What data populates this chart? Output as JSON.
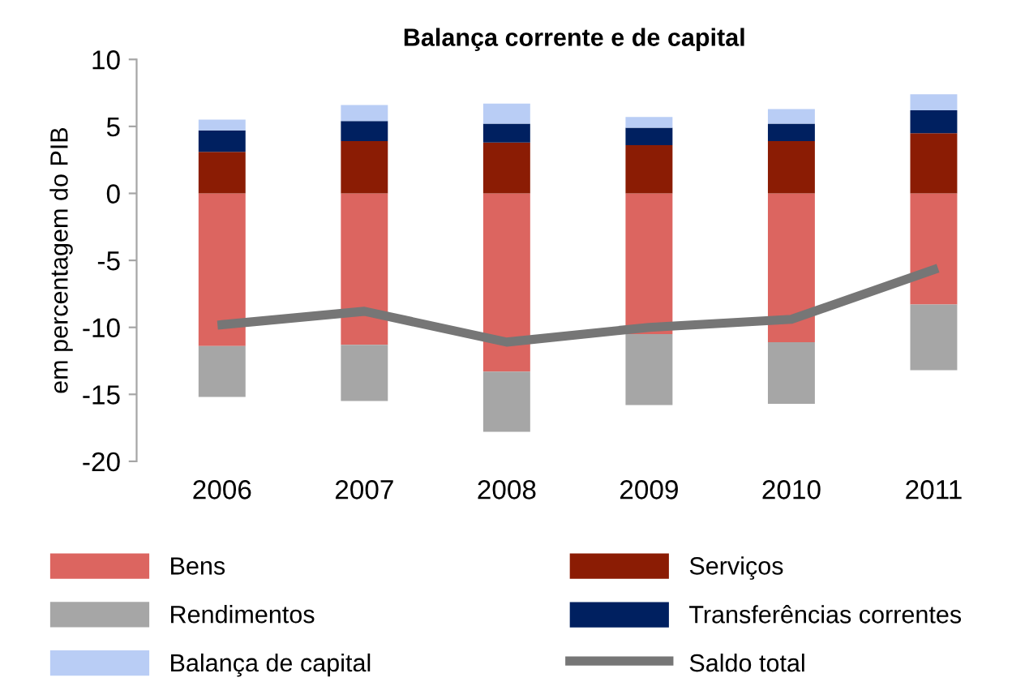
{
  "chart_data": {
    "type": "bar",
    "stacked": true,
    "title": "Balança corrente e de capital",
    "ylabel": "em percentagem do PIB",
    "categories": [
      "2006",
      "2007",
      "2008",
      "2009",
      "2010",
      "2011"
    ],
    "series": [
      {
        "name": "Bens",
        "color": "#dc6560",
        "values": [
          -11.4,
          -11.3,
          -13.3,
          -10.5,
          -11.1,
          -8.3
        ]
      },
      {
        "name": "Serviços",
        "color": "#8b1c04",
        "values": [
          3.1,
          3.9,
          3.8,
          3.6,
          3.9,
          4.5
        ]
      },
      {
        "name": "Rendimentos",
        "color": "#a6a6a6",
        "values": [
          -3.8,
          -4.2,
          -4.5,
          -5.3,
          -4.6,
          -4.9
        ]
      },
      {
        "name": "Transferências correntes",
        "color": "#002060",
        "values": [
          1.6,
          1.5,
          1.4,
          1.3,
          1.3,
          1.7
        ]
      },
      {
        "name": "Balança de capital",
        "color": "#b9cdf5",
        "values": [
          0.8,
          1.2,
          1.5,
          0.8,
          1.1,
          1.2
        ]
      },
      {
        "name": "Saldo total",
        "type": "line",
        "color": "#767676",
        "values": [
          -9.8,
          -8.8,
          -11.1,
          -10.0,
          -9.4,
          -5.7
        ]
      }
    ],
    "ylim": [
      -20,
      10
    ],
    "yticks": [
      -20,
      -15,
      -10,
      -5,
      0,
      5,
      10
    ],
    "grid": false,
    "legend": "bottom",
    "marker": "none",
    "line_style": "solid"
  }
}
